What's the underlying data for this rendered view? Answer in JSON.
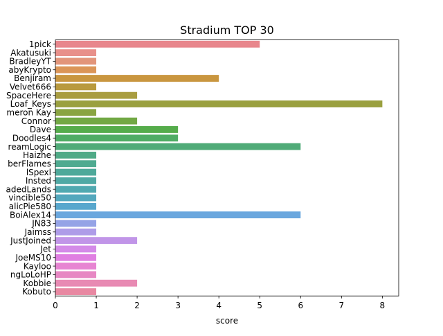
{
  "chart_data": {
    "type": "bar",
    "orientation": "horizontal",
    "title": "Stradium TOP 30",
    "xlabel": "score",
    "ylabel": "",
    "xlim": [
      0,
      8.4
    ],
    "xticks": [
      0,
      1,
      2,
      3,
      4,
      5,
      6,
      7,
      8
    ],
    "grid": false,
    "legend": "none",
    "categories": [
      "1pick",
      "Akatusuki",
      "BradleyYT",
      "abyKrypto",
      "Benjiram",
      "Velvet666",
      "SpaceHere",
      "Loaf_Keys",
      "meron Kay",
      "Connor",
      "Dave",
      "Doodles4",
      "reamLogic",
      "Haizhe",
      "berFlames",
      "lSpexl",
      "Insted",
      "adedLands",
      "vincible50",
      "alicPie580",
      "BoiAlex14",
      "JN83",
      "Jaimss",
      "JustJoined",
      "Jet",
      "JoeMS10",
      "Kayloo",
      "ngLoLoHP",
      "Kobbie",
      "Kobuto"
    ],
    "values": [
      5,
      1,
      1,
      1,
      4,
      1,
      2,
      8,
      1,
      2,
      3,
      3,
      6,
      1,
      1,
      1,
      1,
      1,
      1,
      1,
      6,
      1,
      1,
      2,
      1,
      1,
      1,
      1,
      2,
      1
    ],
    "colors": [
      "#e8868c",
      "#e8908a",
      "#e2957a",
      "#db9557",
      "#c9963f",
      "#b99a3e",
      "#a99d40",
      "#9aa03f",
      "#89a441",
      "#72a844",
      "#55ac4b",
      "#4fac64",
      "#50ab78",
      "#4faa86",
      "#4eaa90",
      "#4ea99a",
      "#4fa9a4",
      "#50a9b0",
      "#53a8bd",
      "#58a7cd",
      "#6aa7de",
      "#95a3e6",
      "#ae9ce8",
      "#c195e8",
      "#d48ae8",
      "#e07fe2",
      "#e784d2",
      "#e787c3",
      "#e88ab3",
      "#e888a2"
    ]
  }
}
